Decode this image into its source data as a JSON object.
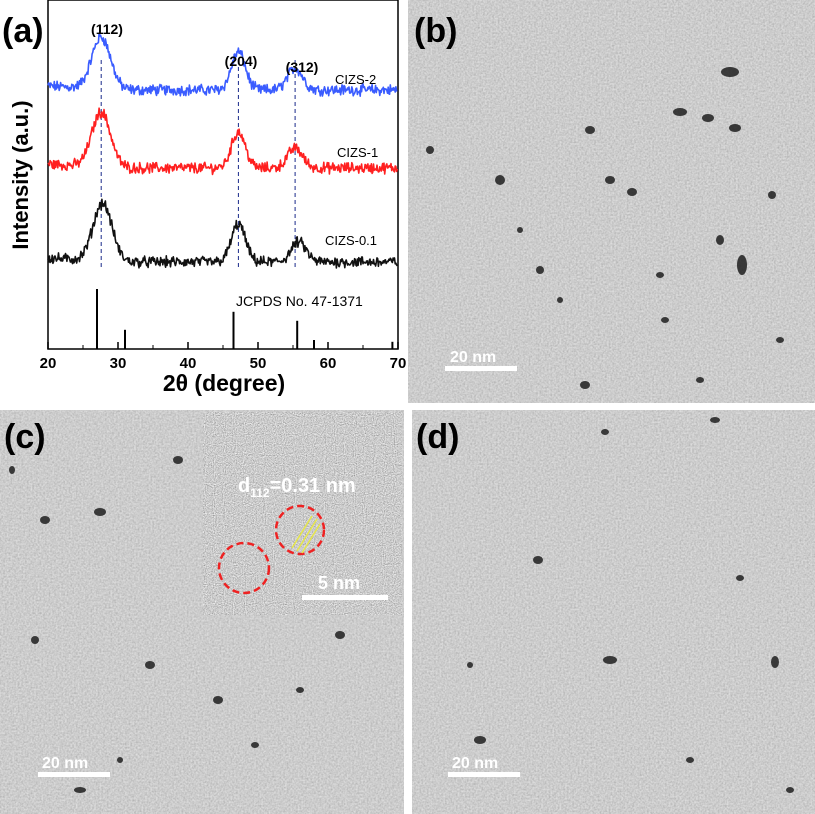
{
  "panels": {
    "a": {
      "label": "(a)"
    },
    "b": {
      "label": "(b)",
      "scale_bar": "20 nm"
    },
    "c": {
      "label": "(c)",
      "scale_bar": "20 nm",
      "inset": {
        "d_prefix": "d",
        "d_subscript": "112",
        "d_value": "=0.31 nm",
        "scale_bar": "5 nm"
      }
    },
    "d": {
      "label": "(d)",
      "scale_bar": "20 nm"
    }
  },
  "colors": {
    "cizs2": "#3a5cff",
    "cizs1": "#ff2020",
    "cizs01": "#111111",
    "guide": "#1a2a8a",
    "circle": "#ee2222"
  },
  "chart_data": {
    "type": "line",
    "xlabel": "2θ (degree)",
    "ylabel": "Intensity (a.u.)",
    "xlim": [
      20,
      70
    ],
    "x_ticks": [
      20,
      30,
      40,
      50,
      60,
      70
    ],
    "series": [
      {
        "name": "CIZS-2",
        "peaks": [
          {
            "x": 27.6,
            "hkl": "(112)"
          },
          {
            "x": 47.2,
            "hkl": "(204)"
          },
          {
            "x": 55.3,
            "hkl": "(312)"
          }
        ]
      },
      {
        "name": "CIZS-1",
        "peaks": [
          {
            "x": 27.6
          },
          {
            "x": 47.2
          },
          {
            "x": 55.3
          }
        ]
      },
      {
        "name": "CIZS-0.1",
        "peaks": [
          {
            "x": 27.8
          },
          {
            "x": 47.2
          },
          {
            "x": 55.8
          }
        ]
      }
    ],
    "reference": {
      "name": "JCPDS No. 47-1371",
      "lines": [
        {
          "x": 27.0,
          "intensity": 1.0
        },
        {
          "x": 31.0,
          "intensity": 0.32
        },
        {
          "x": 46.5,
          "intensity": 0.62
        },
        {
          "x": 55.6,
          "intensity": 0.47
        },
        {
          "x": 58.0,
          "intensity": 0.15
        },
        {
          "x": 69.2,
          "intensity": 0.12
        }
      ]
    },
    "guide_lines_x": [
      27.6,
      47.2,
      55.3
    ]
  }
}
